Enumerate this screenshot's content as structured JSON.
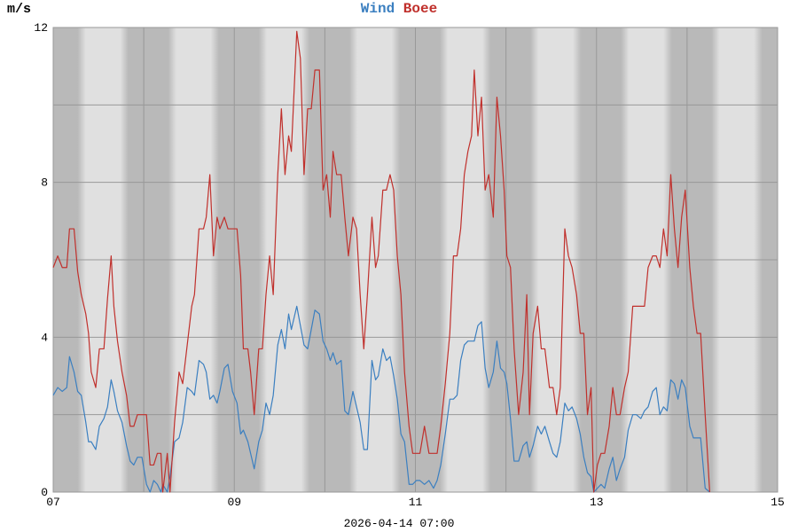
{
  "chart_data": {
    "type": "line",
    "y_label": "m/s",
    "x_label": "2026-04-14 07:00",
    "xlim": [
      7,
      15
    ],
    "xticks": [
      {
        "value": 7,
        "label": "07"
      },
      {
        "value": 9,
        "label": "09"
      },
      {
        "value": 11,
        "label": "11"
      },
      {
        "value": 13,
        "label": "13"
      },
      {
        "value": 15,
        "label": "15"
      }
    ],
    "xminorticks": [
      8,
      10,
      12,
      14
    ],
    "ylim": [
      0,
      12
    ],
    "yticks": [
      0,
      4,
      8,
      12
    ],
    "yminorticks": [
      2,
      6,
      10
    ],
    "grid": true,
    "x": [
      7,
      7.05,
      7.1,
      7.15,
      7.18,
      7.23,
      7.27,
      7.31,
      7.36,
      7.39,
      7.42,
      7.47,
      7.51,
      7.56,
      7.6,
      7.64,
      7.67,
      7.71,
      7.76,
      7.81,
      7.85,
      7.89,
      7.93,
      7.98,
      8.03,
      8.07,
      8.11,
      8.15,
      8.19,
      8.21,
      8.26,
      8.29,
      8.34,
      8.39,
      8.43,
      8.48,
      8.53,
      8.56,
      8.61,
      8.66,
      8.69,
      8.73,
      8.77,
      8.81,
      8.84,
      8.89,
      8.93,
      8.98,
      9.03,
      9.07,
      9.1,
      9.15,
      9.18,
      9.22,
      9.27,
      9.31,
      9.35,
      9.39,
      9.43,
      9.48,
      9.52,
      9.56,
      9.6,
      9.63,
      9.69,
      9.73,
      9.77,
      9.81,
      9.85,
      9.89,
      9.94,
      9.98,
      10.02,
      10.06,
      10.09,
      10.13,
      10.18,
      10.22,
      10.26,
      10.31,
      10.35,
      10.39,
      10.43,
      10.47,
      10.52,
      10.56,
      10.59,
      10.64,
      10.68,
      10.72,
      10.76,
      10.8,
      10.84,
      10.88,
      10.93,
      10.97,
      11.01,
      11.05,
      11.1,
      11.15,
      11.2,
      11.24,
      11.28,
      11.33,
      11.38,
      11.42,
      11.46,
      11.5,
      11.54,
      11.58,
      11.62,
      11.65,
      11.69,
      11.73,
      11.77,
      11.81,
      11.86,
      11.9,
      11.94,
      11.98,
      12.01,
      12.05,
      12.09,
      12.14,
      12.19,
      12.23,
      12.26,
      12.3,
      12.35,
      12.39,
      12.43,
      12.48,
      12.52,
      12.56,
      12.6,
      12.65,
      12.69,
      12.73,
      12.78,
      12.82,
      12.86,
      12.9,
      12.94,
      12.97,
      13.01,
      13.05,
      13.09,
      13.14,
      13.18,
      13.22,
      13.26,
      13.31,
      13.35,
      13.4,
      13.44,
      13.49,
      13.53,
      13.57,
      13.62,
      13.66,
      13.7,
      13.74,
      13.78,
      13.82,
      13.86,
      13.9,
      13.94,
      13.98,
      14.03,
      14.07,
      14.11,
      14.15,
      14.2,
      14.25
    ],
    "series": [
      {
        "name": "Wind",
        "color": "#3b7fc0",
        "values": [
          2.5,
          2.7,
          2.6,
          2.7,
          3.5,
          3.1,
          2.6,
          2.5,
          1.8,
          1.3,
          1.3,
          1.1,
          1.7,
          1.9,
          2.2,
          2.9,
          2.6,
          2.1,
          1.8,
          1.2,
          0.8,
          0.7,
          0.9,
          0.9,
          0.2,
          0.0,
          0.3,
          0.2,
          0.0,
          0.2,
          0.0,
          0.4,
          1.3,
          1.4,
          1.8,
          2.7,
          2.6,
          2.5,
          3.4,
          3.3,
          3.1,
          2.4,
          2.5,
          2.3,
          2.6,
          3.2,
          3.3,
          2.6,
          2.3,
          1.5,
          1.6,
          1.3,
          1.0,
          0.6,
          1.3,
          1.6,
          2.3,
          2.0,
          2.5,
          3.8,
          4.2,
          3.7,
          4.6,
          4.2,
          4.8,
          4.3,
          3.8,
          3.7,
          4.2,
          4.7,
          4.6,
          3.9,
          3.7,
          3.4,
          3.6,
          3.3,
          3.4,
          2.1,
          2.0,
          2.6,
          2.2,
          1.8,
          1.1,
          1.1,
          3.4,
          2.9,
          3.0,
          3.7,
          3.4,
          3.5,
          3.0,
          2.4,
          1.5,
          1.3,
          0.2,
          0.2,
          0.3,
          0.3,
          0.2,
          0.3,
          0.1,
          0.3,
          0.7,
          1.5,
          2.4,
          2.4,
          2.5,
          3.4,
          3.8,
          3.9,
          3.9,
          3.9,
          4.3,
          4.4,
          3.2,
          2.7,
          3.1,
          3.9,
          3.2,
          3.1,
          2.8,
          1.9,
          0.8,
          0.8,
          1.2,
          1.3,
          0.9,
          1.2,
          1.7,
          1.5,
          1.7,
          1.3,
          1.0,
          0.9,
          1.3,
          2.3,
          2.1,
          2.2,
          1.9,
          1.5,
          0.9,
          0.5,
          0.4,
          0.0,
          0.1,
          0.2,
          0.1,
          0.6,
          0.9,
          0.3,
          0.6,
          0.9,
          1.6,
          2.0,
          2.0,
          1.9,
          2.1,
          2.2,
          2.6,
          2.7,
          2.0,
          2.2,
          2.1,
          2.9,
          2.8,
          2.4,
          2.9,
          2.7,
          1.7,
          1.4,
          1.4,
          1.4,
          0.1,
          0.0
        ]
      },
      {
        "name": "Boee",
        "color": "#c0302c",
        "values": [
          5.8,
          6.1,
          5.8,
          5.8,
          6.8,
          6.8,
          5.7,
          5.1,
          4.6,
          4.1,
          3.1,
          2.7,
          3.7,
          3.7,
          5.0,
          6.1,
          4.8,
          3.9,
          3.1,
          2.5,
          1.7,
          1.7,
          2.0,
          2.0,
          2.0,
          0.7,
          0.7,
          1.0,
          1.0,
          0.0,
          1.0,
          0.0,
          1.8,
          3.1,
          2.8,
          3.8,
          4.8,
          5.1,
          6.8,
          6.8,
          7.1,
          8.2,
          6.1,
          7.1,
          6.8,
          7.1,
          6.8,
          6.8,
          6.8,
          5.6,
          3.7,
          3.7,
          3.1,
          2.0,
          3.7,
          3.7,
          5.1,
          6.1,
          5.1,
          8.2,
          9.9,
          8.2,
          9.2,
          8.8,
          11.9,
          11.2,
          8.2,
          9.9,
          9.9,
          10.9,
          10.9,
          7.8,
          8.2,
          7.1,
          8.8,
          8.2,
          8.2,
          7.1,
          6.1,
          7.1,
          6.8,
          5.1,
          3.7,
          5.1,
          7.1,
          5.8,
          6.1,
          7.8,
          7.8,
          8.2,
          7.8,
          6.1,
          5.1,
          3.1,
          1.7,
          1.0,
          1.0,
          1.0,
          1.7,
          1.0,
          1.0,
          1.0,
          1.7,
          2.8,
          4.1,
          6.1,
          6.1,
          6.8,
          8.2,
          8.8,
          9.2,
          10.9,
          9.2,
          10.2,
          7.8,
          8.2,
          7.1,
          10.2,
          9.2,
          7.8,
          6.1,
          5.8,
          3.7,
          2.0,
          3.1,
          5.1,
          2.0,
          4.1,
          4.8,
          3.7,
          3.7,
          2.7,
          2.7,
          2.0,
          2.7,
          6.8,
          6.1,
          5.8,
          5.1,
          4.1,
          4.1,
          2.0,
          2.7,
          0.0,
          0.7,
          1.0,
          1.0,
          1.7,
          2.7,
          2.0,
          2.0,
          2.7,
          3.1,
          4.8,
          4.8,
          4.8,
          4.8,
          5.8,
          6.1,
          6.1,
          5.8,
          6.8,
          6.1,
          8.2,
          6.8,
          5.8,
          7.1,
          7.8,
          5.8,
          4.8,
          4.1,
          4.1,
          2.0,
          0.0
        ]
      }
    ]
  }
}
